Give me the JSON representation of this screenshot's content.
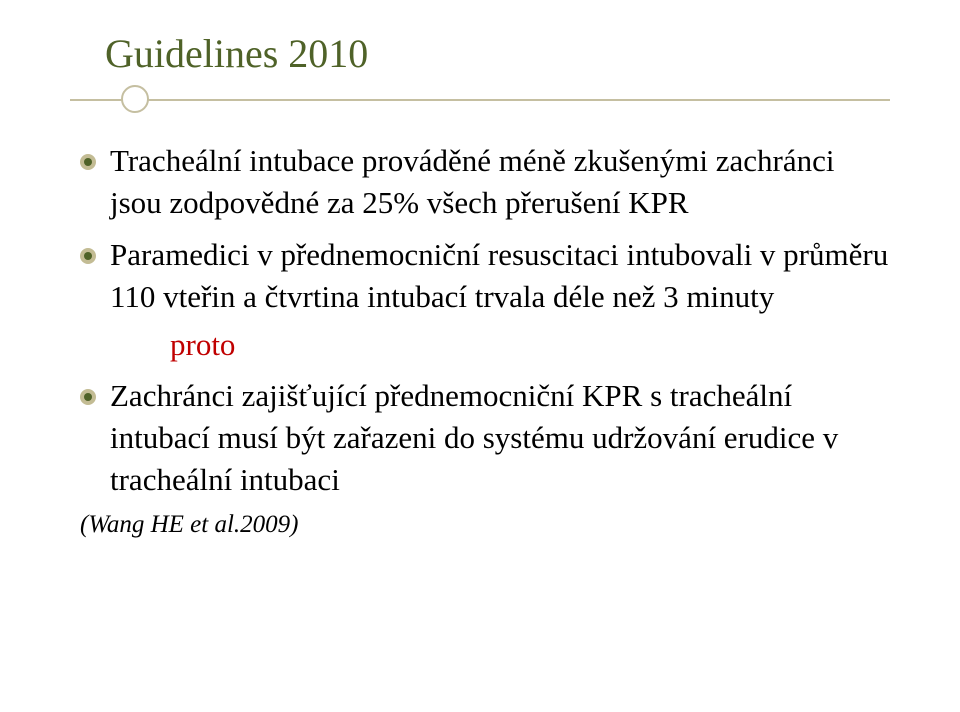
{
  "slide": {
    "title": "Guidelines 2010",
    "bullets": [
      "Tracheální intubace prováděné méně zkušenými zachránci jsou zodpovědné za 25% všech přerušení KPR",
      "Paramedici v přednemocniční resuscitaci intubovali v průměru 110 vteřin a čtvrtina intubací trvala déle než 3 minuty",
      "Zachránci zajišťující přednemocniční KPR s tracheální intubací musí být zařazeni do systému udržování erudice v tracheální intubaci"
    ],
    "proto": "proto",
    "citation": "(Wang HE et al.2009)"
  },
  "style": {
    "title_color": "#4f6228",
    "title_fontsize": 40,
    "divider_color": "#c5bfa1",
    "bullet_outer_color": "#c3bc94",
    "bullet_inner_color": "#4f6228",
    "body_fontsize": 31,
    "body_color": "#000000",
    "proto_color": "#c00000",
    "citation_fontsize": 25,
    "background_color": "#ffffff",
    "font_family": "Georgia"
  }
}
